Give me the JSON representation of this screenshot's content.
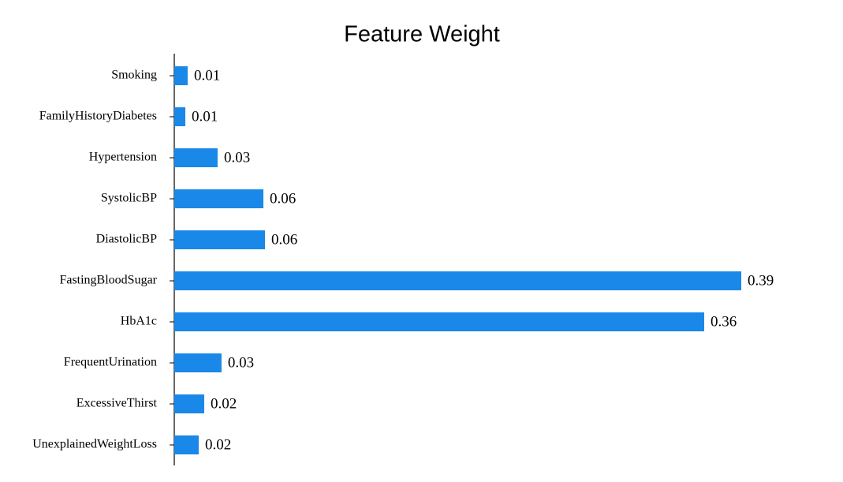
{
  "chart_data": {
    "type": "barh",
    "title": "Feature Weight",
    "categories": [
      "Smoking",
      "FamilyHistoryDiabetes",
      "Hypertension",
      "SystolicBP",
      "DiastolicBP",
      "FastingBloodSugar",
      "HbA1c",
      "FrequentUrination",
      "ExcessiveThirst",
      "UnexplainedWeightLoss"
    ],
    "values": [
      0.0092,
      0.0076,
      0.0298,
      0.0613,
      0.0624,
      0.39,
      0.3645,
      0.0325,
      0.0206,
      0.0168
    ],
    "value_labels": [
      "0.01",
      "0.01",
      "0.03",
      "0.06",
      "0.06",
      "0.39",
      "0.36",
      "0.03",
      "0.02",
      "0.02"
    ],
    "color": "#1a88e8",
    "xlim": [
      0,
      0.39
    ]
  }
}
